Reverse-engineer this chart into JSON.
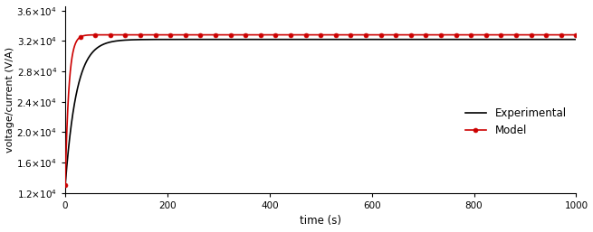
{
  "title": "",
  "xlabel": "time (s)",
  "ylabel": "voltage/current (V/A)",
  "xlim": [
    0,
    1000
  ],
  "ylim": [
    12000.0,
    36500.0
  ],
  "yticks": [
    12000.0,
    16000.0,
    20000.0,
    24000.0,
    28000.0,
    32000.0,
    36000.0
  ],
  "xticks": [
    0,
    200,
    400,
    600,
    800,
    1000
  ],
  "exp_color": "#000000",
  "model_color": "#cc0000",
  "model_marker": "o",
  "model_markersize": 3.5,
  "legend_labels": [
    "Experimental",
    "Model"
  ],
  "R_inf_exp": 32200,
  "R_0_exp": 13000,
  "tau_exp": 22,
  "R_inf_model": 32800,
  "R_0_model": 13000,
  "tau_model": 7,
  "n_markers": 35
}
